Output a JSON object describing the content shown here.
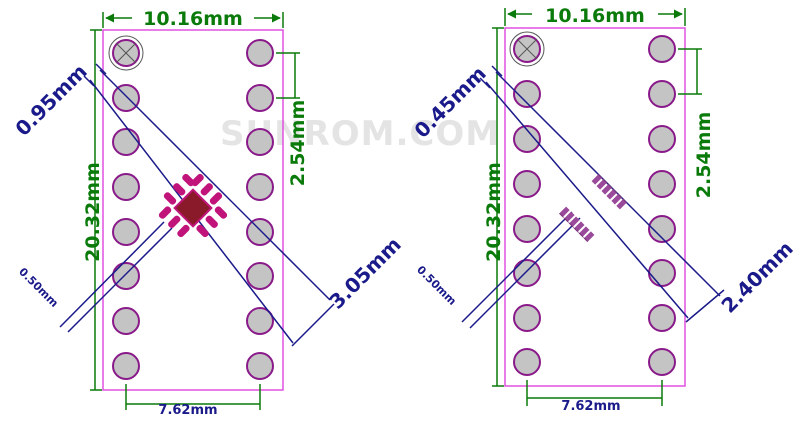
{
  "watermark": "SUNROM.COM",
  "colors": {
    "board_outline": "#e050e0",
    "pad_fill": "#c4c4c4",
    "pad_ring": "#8a1a8a",
    "dimension_green": "#0a7a0a",
    "dimension_blue": "#1a1a8a",
    "chip_pad_left": "#c0147a",
    "chip_center_left": "#8a1a2a",
    "chip_pad_right": "#9a4a9a"
  },
  "left_board": {
    "width_label": "10.16mm",
    "height_label": "20.32mm",
    "pitch_label": "2.54mm",
    "row_span_label": "7.62mm",
    "chip_pitch_label": "0.95mm",
    "chip_size_label": "3.05mm",
    "pad_width_label": "0.50mm"
  },
  "right_board": {
    "width_label": "10.16mm",
    "height_label": "20.32mm",
    "pitch_label": "2.54mm",
    "row_span_label": "7.62mm",
    "chip_pitch_label": "0.45mm",
    "chip_size_label": "2.40mm",
    "pad_width_label": "0.50mm"
  }
}
